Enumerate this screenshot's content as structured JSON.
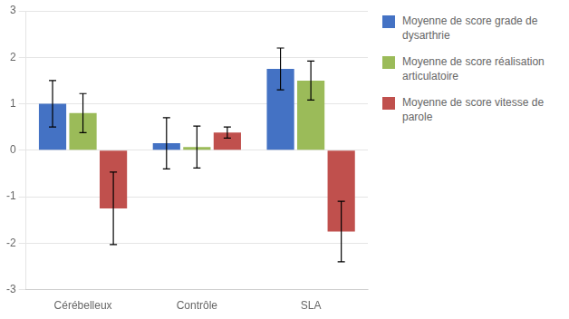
{
  "chart_data": {
    "type": "bar",
    "categories": [
      "Cérébelleux",
      "Contrôle",
      "SLA"
    ],
    "series": [
      {
        "name": "Moyenne de score grade de\ndysarthrie",
        "color": "#4472C4",
        "values": [
          1.0,
          0.15,
          1.75
        ],
        "errors": [
          0.5,
          0.55,
          0.45
        ]
      },
      {
        "name": "Moyenne de score réalisation\narticulatoire",
        "color": "#9BBB59",
        "values": [
          0.8,
          0.07,
          1.5
        ],
        "errors": [
          0.42,
          0.45,
          0.42
        ]
      },
      {
        "name": "Moyenne de score vitesse de\nparole",
        "color": "#C0504D",
        "values": [
          -1.25,
          0.38,
          -1.75
        ],
        "errors": [
          0.78,
          0.12,
          0.65
        ]
      }
    ],
    "ylim": [
      -3,
      3
    ],
    "yticks": [
      -3,
      -2,
      -1,
      0,
      1,
      2,
      3
    ],
    "grid": true,
    "legend": "right"
  }
}
